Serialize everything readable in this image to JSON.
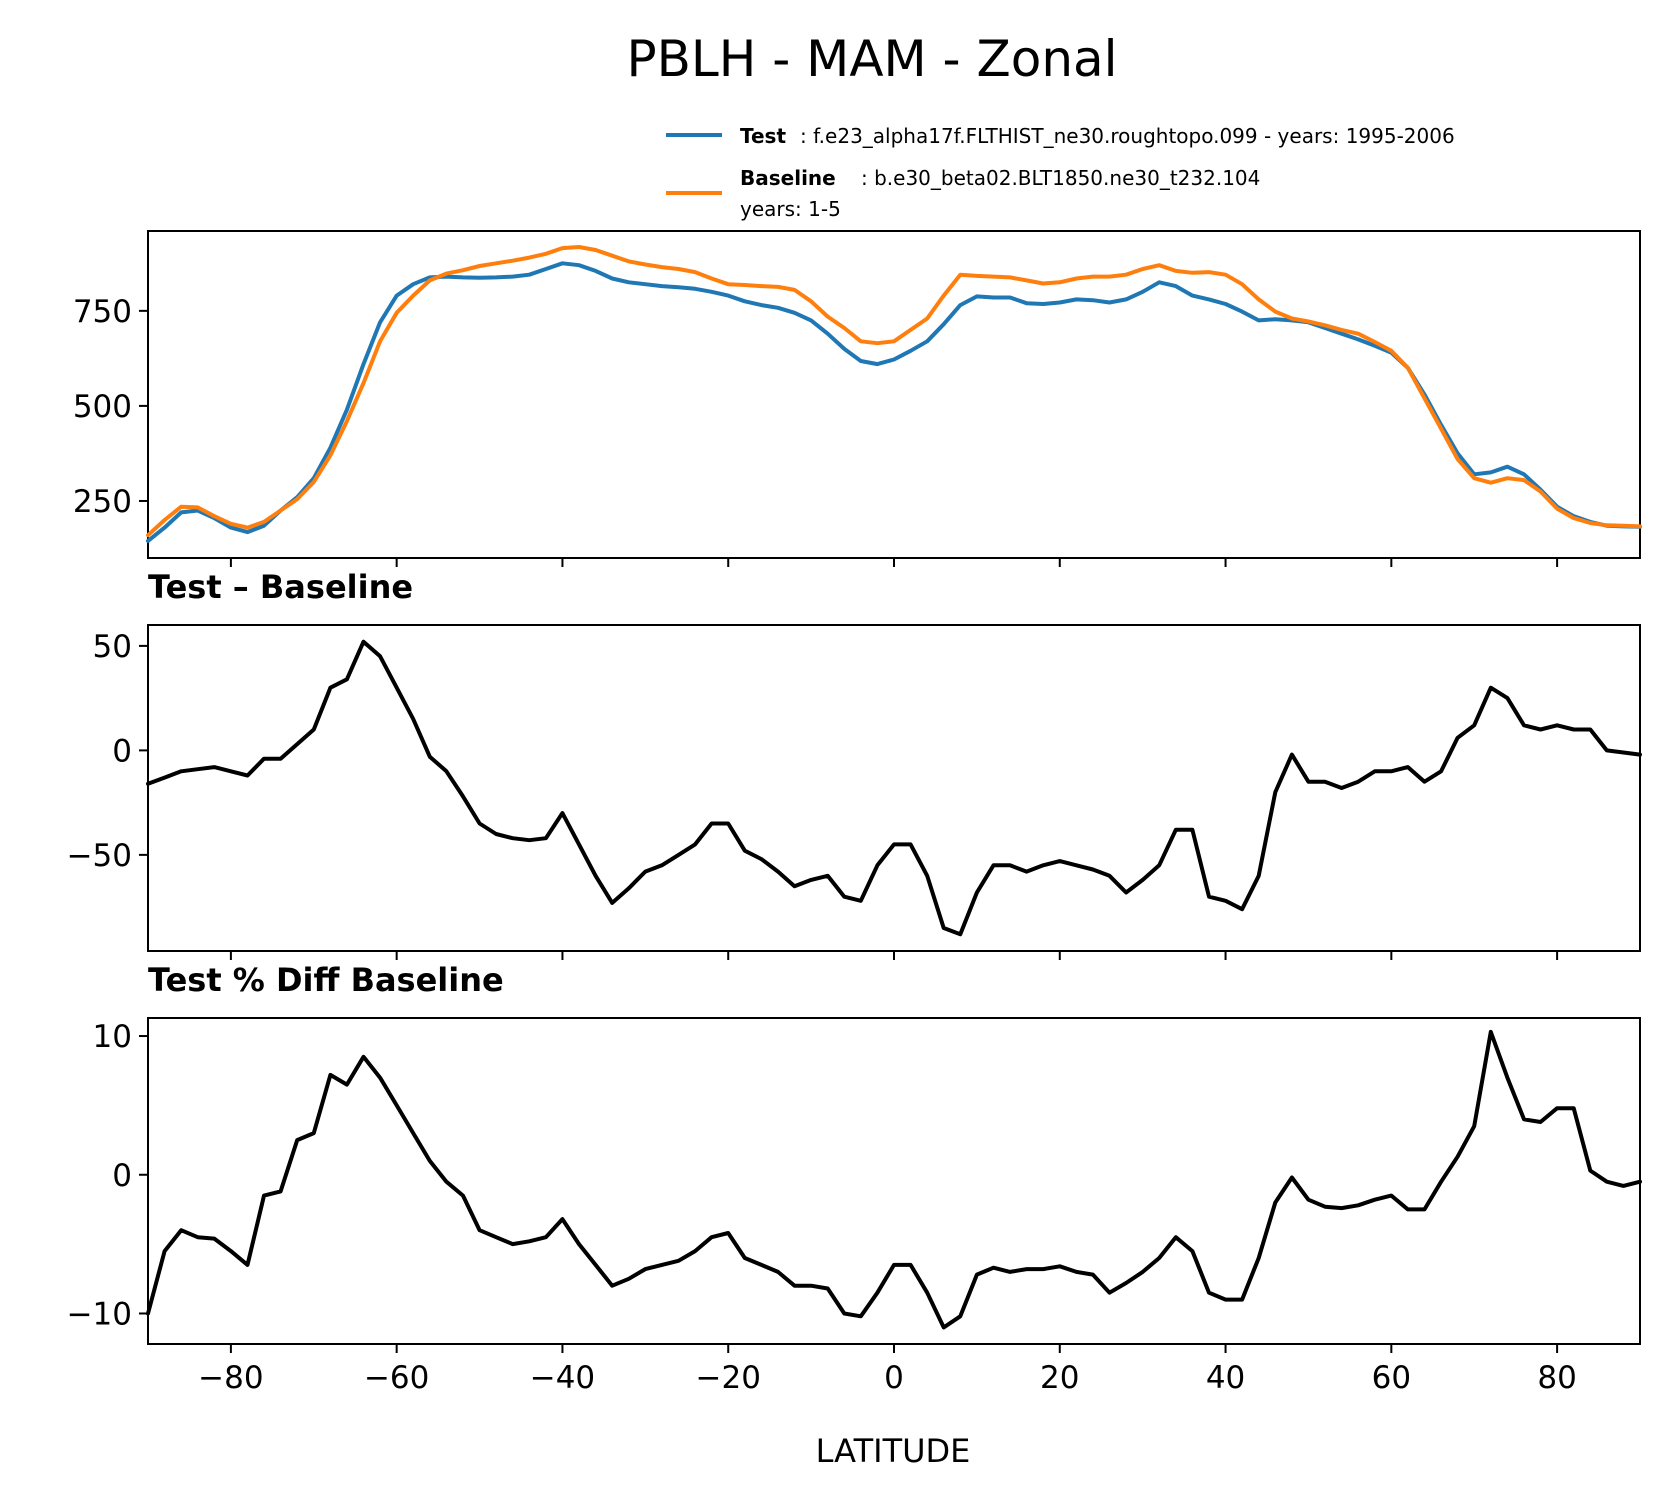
{
  "title": "PBLH - MAM - Zonal",
  "legend": {
    "test_name": "Test",
    "test_desc": ": f.e23_alpha17f.FLTHIST_ne30.roughtopo.099 - years: 1995-2006",
    "baseline_name": "Baseline",
    "baseline_desc": ": b.e30_beta02.BLT1850.ne30_t232.104",
    "baseline_years": "years: 1-5"
  },
  "colors": {
    "test": "#1f77b4",
    "baseline": "#ff7f0e",
    "diff": "#000000"
  },
  "x_axis": {
    "label": "LATITUDE",
    "range": [
      -90,
      90
    ],
    "ticks": [
      -80,
      -60,
      -40,
      -20,
      0,
      20,
      40,
      60,
      80
    ]
  },
  "chart_data": [
    {
      "type": "line",
      "title": "",
      "xlabel": "",
      "ylabel": "",
      "xlim": [
        -90,
        90
      ],
      "ylim": [
        100,
        960
      ],
      "yticks": [
        250,
        500,
        750
      ],
      "grid": false,
      "legend": "top-right",
      "x": [
        -90,
        -88,
        -86,
        -84,
        -82,
        -80,
        -78,
        -76,
        -74,
        -72,
        -70,
        -68,
        -66,
        -64,
        -62,
        -60,
        -58,
        -56,
        -54,
        -52,
        -50,
        -48,
        -46,
        -44,
        -42,
        -40,
        -38,
        -36,
        -34,
        -32,
        -30,
        -28,
        -26,
        -24,
        -22,
        -20,
        -18,
        -16,
        -14,
        -12,
        -10,
        -8,
        -6,
        -4,
        -2,
        0,
        2,
        4,
        6,
        8,
        10,
        12,
        14,
        16,
        18,
        20,
        22,
        24,
        26,
        28,
        30,
        32,
        34,
        36,
        38,
        40,
        42,
        44,
        46,
        48,
        50,
        52,
        54,
        56,
        58,
        60,
        62,
        64,
        66,
        68,
        70,
        72,
        74,
        76,
        78,
        80,
        82,
        84,
        86,
        88,
        90
      ],
      "series": [
        {
          "name": "Test",
          "values": [
            145,
            180,
            220,
            225,
            205,
            180,
            168,
            185,
            225,
            260,
            310,
            390,
            490,
            610,
            720,
            790,
            820,
            838,
            840,
            838,
            837,
            838,
            840,
            845,
            860,
            875,
            870,
            855,
            835,
            825,
            820,
            815,
            812,
            808,
            800,
            790,
            775,
            765,
            758,
            745,
            725,
            690,
            650,
            618,
            610,
            622,
            645,
            670,
            715,
            765,
            788,
            785,
            785,
            770,
            768,
            772,
            780,
            778,
            772,
            780,
            800,
            825,
            815,
            790,
            780,
            768,
            748,
            725,
            728,
            725,
            720,
            705,
            690,
            675,
            658,
            640,
            600,
            530,
            450,
            375,
            320,
            325,
            340,
            320,
            280,
            235,
            210,
            195,
            185,
            183,
            182
          ],
          "color": "#1f77b4"
        },
        {
          "name": "Baseline",
          "values": [
            160,
            200,
            235,
            233,
            210,
            190,
            180,
            195,
            225,
            255,
            300,
            370,
            460,
            560,
            670,
            745,
            790,
            830,
            848,
            857,
            868,
            875,
            882,
            890,
            900,
            915,
            918,
            910,
            895,
            880,
            872,
            865,
            860,
            852,
            835,
            820,
            818,
            815,
            813,
            805,
            775,
            735,
            705,
            670,
            665,
            670,
            700,
            730,
            790,
            845,
            842,
            840,
            838,
            830,
            822,
            825,
            835,
            840,
            840,
            845,
            860,
            870,
            855,
            850,
            852,
            845,
            820,
            780,
            748,
            730,
            722,
            712,
            700,
            690,
            668,
            645,
            600,
            520,
            440,
            360,
            310,
            298,
            310,
            305,
            275,
            230,
            205,
            192,
            186,
            185,
            183
          ],
          "color": "#ff7f0e"
        }
      ]
    },
    {
      "type": "line",
      "title": "Test – Baseline",
      "xlabel": "",
      "ylabel": "",
      "xlim": [
        -90,
        90
      ],
      "ylim": [
        -96,
        60
      ],
      "yticks": [
        -50,
        0,
        50
      ],
      "grid": false,
      "x": [
        -90,
        -88,
        -86,
        -84,
        -82,
        -80,
        -78,
        -76,
        -74,
        -72,
        -70,
        -68,
        -66,
        -64,
        -62,
        -60,
        -58,
        -56,
        -54,
        -52,
        -50,
        -48,
        -46,
        -44,
        -42,
        -40,
        -38,
        -36,
        -34,
        -32,
        -30,
        -28,
        -26,
        -24,
        -22,
        -20,
        -18,
        -16,
        -14,
        -12,
        -10,
        -8,
        -6,
        -4,
        -2,
        0,
        2,
        4,
        6,
        8,
        10,
        12,
        14,
        16,
        18,
        20,
        22,
        24,
        26,
        28,
        30,
        32,
        34,
        36,
        38,
        40,
        42,
        44,
        46,
        48,
        50,
        52,
        54,
        56,
        58,
        60,
        62,
        64,
        66,
        68,
        70,
        72,
        74,
        76,
        78,
        80,
        82,
        84,
        86,
        88,
        90
      ],
      "series": [
        {
          "name": "",
          "values": [
            -16,
            -13,
            -10,
            -9,
            -8,
            -10,
            -12,
            -4,
            -4,
            3,
            10,
            30,
            34,
            52,
            45,
            30,
            15,
            -3,
            -10,
            -22,
            -35,
            -40,
            -42,
            -43,
            -42,
            -30,
            -45,
            -60,
            -73,
            -66,
            -58,
            -55,
            -50,
            -45,
            -35,
            -35,
            -48,
            -52,
            -58,
            -65,
            -62,
            -60,
            -70,
            -72,
            -55,
            -45,
            -45,
            -60,
            -85,
            -88,
            -68,
            -55,
            -55,
            -58,
            -55,
            -53,
            -55,
            -57,
            -60,
            -68,
            -62,
            -55,
            -38,
            -38,
            -70,
            -72,
            -76,
            -60,
            -20,
            -2,
            -15,
            -15,
            -18,
            -15,
            -10,
            -10,
            -8,
            -15,
            -10,
            6,
            12,
            30,
            25,
            12,
            10,
            12,
            10,
            10,
            0,
            -1,
            -2
          ]
        }
      ]
    },
    {
      "type": "line",
      "title": "Test % Diff Baseline",
      "xlabel": "LATITUDE",
      "ylabel": "",
      "xlim": [
        -90,
        90
      ],
      "ylim": [
        -12.2,
        11.3
      ],
      "yticks": [
        -10,
        0,
        10
      ],
      "grid": false,
      "x": [
        -90,
        -88,
        -86,
        -84,
        -82,
        -80,
        -78,
        -76,
        -74,
        -72,
        -70,
        -68,
        -66,
        -64,
        -62,
        -60,
        -58,
        -56,
        -54,
        -52,
        -50,
        -48,
        -46,
        -44,
        -42,
        -40,
        -38,
        -36,
        -34,
        -32,
        -30,
        -28,
        -26,
        -24,
        -22,
        -20,
        -18,
        -16,
        -14,
        -12,
        -10,
        -8,
        -6,
        -4,
        -2,
        0,
        2,
        4,
        6,
        8,
        10,
        12,
        14,
        16,
        18,
        20,
        22,
        24,
        26,
        28,
        30,
        32,
        34,
        36,
        38,
        40,
        42,
        44,
        46,
        48,
        50,
        52,
        54,
        56,
        58,
        60,
        62,
        64,
        66,
        68,
        70,
        72,
        74,
        76,
        78,
        80,
        82,
        84,
        86,
        88,
        90
      ],
      "series": [
        {
          "name": "",
          "values": [
            -10,
            -5.5,
            -4,
            -4.5,
            -4.6,
            -5.5,
            -6.5,
            -1.5,
            -1.2,
            2.5,
            3,
            7.2,
            6.5,
            8.5,
            7,
            5,
            3,
            1,
            -0.5,
            -1.5,
            -4,
            -4.5,
            -5,
            -4.8,
            -4.5,
            -3.2,
            -5,
            -6.5,
            -8,
            -7.5,
            -6.8,
            -6.5,
            -6.2,
            -5.5,
            -4.5,
            -4.2,
            -6,
            -6.5,
            -7,
            -8,
            -8,
            -8.2,
            -10,
            -10.2,
            -8.5,
            -6.5,
            -6.5,
            -8.5,
            -11,
            -10.2,
            -7.2,
            -6.7,
            -7,
            -6.8,
            -6.8,
            -6.6,
            -7,
            -7.2,
            -8.5,
            -7.8,
            -7,
            -6,
            -4.5,
            -5.5,
            -8.5,
            -9,
            -9,
            -6,
            -2,
            -0.2,
            -1.8,
            -2.3,
            -2.4,
            -2.2,
            -1.8,
            -1.5,
            -2.5,
            -2.5,
            -0.5,
            1.3,
            3.5,
            10.3,
            7,
            4,
            3.8,
            4.8,
            4.8,
            0.3,
            -0.5,
            -0.8,
            -0.5
          ]
        }
      ]
    }
  ]
}
